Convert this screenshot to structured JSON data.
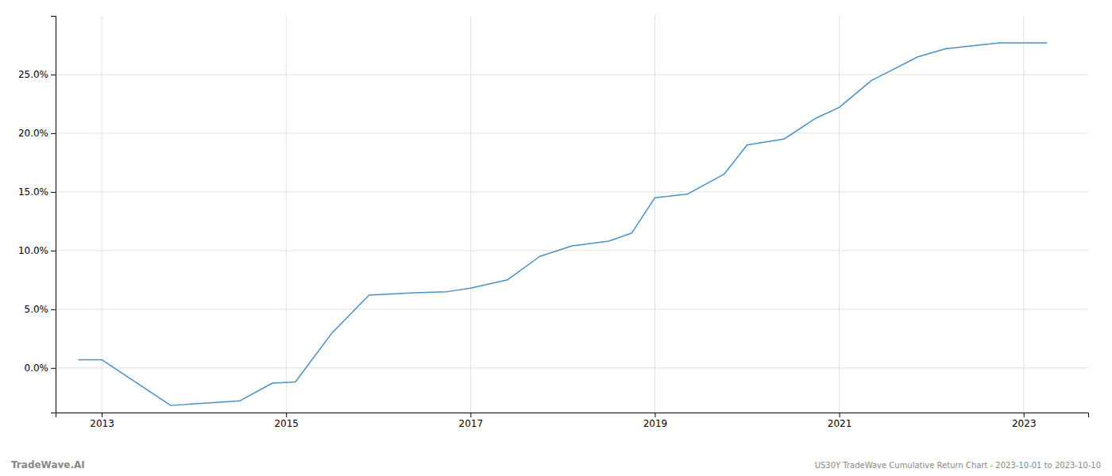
{
  "chart_data": {
    "type": "line",
    "x": [
      2012.75,
      2013.0,
      2013.75,
      2014.5,
      2014.85,
      2015.1,
      2015.5,
      2015.9,
      2016.4,
      2016.75,
      2017.0,
      2017.4,
      2017.75,
      2018.1,
      2018.5,
      2018.75,
      2019.0,
      2019.35,
      2019.75,
      2020.0,
      2020.4,
      2020.75,
      2021.0,
      2021.35,
      2021.6,
      2021.85,
      2022.15,
      2022.5,
      2022.75,
      2023.0,
      2023.25
    ],
    "values": [
      0.007,
      0.007,
      -0.032,
      -0.028,
      -0.013,
      -0.012,
      0.03,
      0.062,
      0.064,
      0.065,
      0.068,
      0.075,
      0.095,
      0.104,
      0.108,
      0.115,
      0.145,
      0.148,
      0.165,
      0.19,
      0.195,
      0.213,
      0.222,
      0.245,
      0.255,
      0.265,
      0.272,
      0.275,
      0.277,
      0.277,
      0.277
    ],
    "color": "#4a90c4",
    "xlim": [
      2012.5,
      2023.7
    ],
    "ylim": [
      -0.038,
      0.3
    ],
    "xticks": [
      2013,
      2015,
      2017,
      2019,
      2021,
      2023
    ],
    "yticks": [
      {
        "value": 0.0,
        "label": "0.0%"
      },
      {
        "value": 0.05,
        "label": "5.0%"
      },
      {
        "value": 0.1,
        "label": "10.0%"
      },
      {
        "value": 0.15,
        "label": "15.0%"
      },
      {
        "value": 0.2,
        "label": "20.0%"
      },
      {
        "value": 0.25,
        "label": "25.0%"
      }
    ],
    "grid": true,
    "annotations": [
      "TradeWave.AI",
      "US30Y TradeWave Cumulative Return Chart - 2023-10-01 to 2023-10-10"
    ]
  }
}
